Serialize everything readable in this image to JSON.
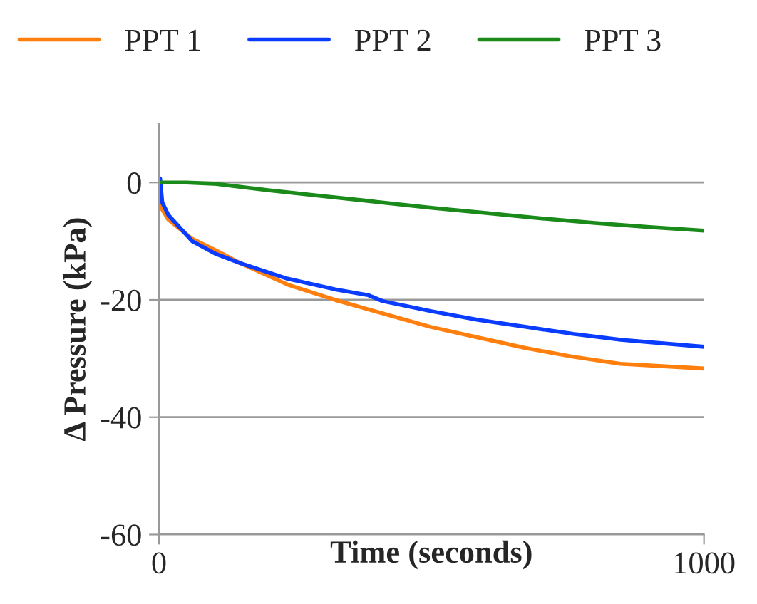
{
  "chart_data": {
    "type": "line",
    "xlabel": "Time (seconds)",
    "ylabel": "Δ Pressure (kPa)",
    "xlim": [
      0,
      1000
    ],
    "xticks": [
      0,
      1000
    ],
    "ylim": [
      -60,
      10
    ],
    "yticks": [
      -60,
      -40,
      -20,
      0
    ],
    "grid": "y",
    "legend": "top",
    "marker": "none",
    "line_style": "solid",
    "series": [
      {
        "name": "PPT 1",
        "color": "#ff7f0e",
        "x": [
          0,
          2,
          4,
          17,
          61,
          105,
          148,
          236,
          323,
          410,
          498,
          585,
          672,
          760,
          847,
          1000
        ],
        "values": [
          0,
          -2,
          -4.3,
          -6.3,
          -9.6,
          -11.6,
          -13.7,
          -17.4,
          -20,
          -22.3,
          -24.6,
          -26.4,
          -28.2,
          -29.7,
          -30.9,
          -31.7
        ]
      },
      {
        "name": "PPT 2",
        "color": "#0a3cff",
        "x": [
          0,
          2,
          6,
          17,
          61,
          105,
          148,
          236,
          323,
          384,
          410,
          498,
          585,
          672,
          760,
          847,
          1000
        ],
        "values": [
          0,
          0.7,
          -3.4,
          -5.5,
          -10,
          -12.2,
          -13.7,
          -16.4,
          -18.2,
          -19.2,
          -20.2,
          -21.9,
          -23.4,
          -24.6,
          -25.8,
          -26.8,
          -28
        ]
      },
      {
        "name": "PPT 3",
        "color": "#1a8a1a",
        "x": [
          0,
          50,
          100,
          200,
          300,
          400,
          500,
          600,
          700,
          800,
          900,
          1000
        ],
        "values": [
          0,
          0,
          -0.2,
          -1.3,
          -2.3,
          -3.3,
          -4.3,
          -5.2,
          -6.1,
          -6.9,
          -7.6,
          -8.2
        ]
      }
    ]
  }
}
